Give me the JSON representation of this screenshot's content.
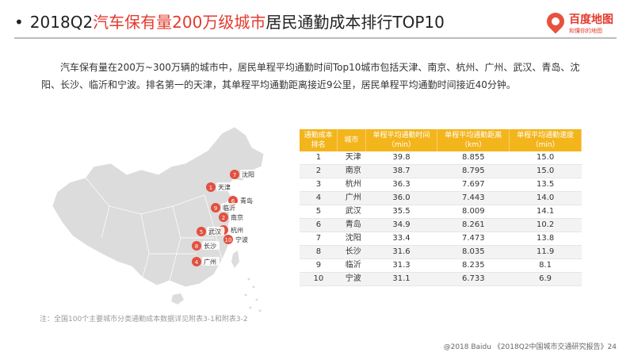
{
  "title": {
    "bullet": "•",
    "prefix": "2018Q2",
    "highlight": "汽车保有量200万级城市",
    "suffix": "居民通勤成本排行TOP10"
  },
  "logo": {
    "brand": "百度地图",
    "slogan": "和懂你的地图",
    "color": "#e23b2e"
  },
  "description": "汽车保有量在200万~300万辆的城市中，居民单程平均通勤时间Top10城市包括天津、南京、杭州、广州、武汉、青岛、沈阳、长沙、临沂和宁波。排名第一的天津，其单程平均通勤距离接近9公里，居民单程平均通勤时间接近40分钟。",
  "table": {
    "header_color": "#f3b51c",
    "headers": [
      [
        "通勤成本",
        "排名"
      ],
      [
        "城市"
      ],
      [
        "单程平均通勤时间",
        "（min）"
      ],
      [
        "单程平均通勤距离",
        "（km）"
      ],
      [
        "单程平均通勤速度",
        "（min）"
      ]
    ],
    "rows": [
      {
        "rank": "1",
        "city": "天津",
        "time": "39.8",
        "dist": "8.855",
        "speed": "15.0"
      },
      {
        "rank": "2",
        "city": "南京",
        "time": "38.7",
        "dist": "8.795",
        "speed": "15.0"
      },
      {
        "rank": "3",
        "city": "杭州",
        "time": "36.3",
        "dist": "7.697",
        "speed": "13.5"
      },
      {
        "rank": "4",
        "city": "广州",
        "time": "36.0",
        "dist": "7.443",
        "speed": "14.0"
      },
      {
        "rank": "5",
        "city": "武汉",
        "time": "35.5",
        "dist": "8.009",
        "speed": "14.1"
      },
      {
        "rank": "6",
        "city": "青岛",
        "time": "34.9",
        "dist": "8.261",
        "speed": "10.2"
      },
      {
        "rank": "7",
        "city": "沈阳",
        "time": "33.4",
        "dist": "7.473",
        "speed": "13.8"
      },
      {
        "rank": "8",
        "city": "长沙",
        "time": "31.6",
        "dist": "8.035",
        "speed": "11.9"
      },
      {
        "rank": "9",
        "city": "临沂",
        "time": "31.3",
        "dist": "8.235",
        "speed": "8.1"
      },
      {
        "rank": "10",
        "city": "宁波",
        "time": "31.1",
        "dist": "6.733",
        "speed": "6.9"
      }
    ]
  },
  "map": {
    "pin_color": "#e2503f",
    "land_color": "#dcdcdc",
    "pins": [
      {
        "rank": "1",
        "city": "天津"
      },
      {
        "rank": "2",
        "city": "南京"
      },
      {
        "rank": "3",
        "city": "杭州"
      },
      {
        "rank": "4",
        "city": "广州"
      },
      {
        "rank": "5",
        "city": "武汉"
      },
      {
        "rank": "6",
        "city": "青岛"
      },
      {
        "rank": "7",
        "city": "沈阳"
      },
      {
        "rank": "8",
        "city": "长沙"
      },
      {
        "rank": "9",
        "city": "临沂"
      },
      {
        "rank": "10",
        "city": "宁波"
      }
    ]
  },
  "note": "注：全国100个主要城市分类通勤成本数据详见附表3-1和附表3-2",
  "footer": "@2018 Baidu 《2018Q2中国城市交通研究报告》24"
}
